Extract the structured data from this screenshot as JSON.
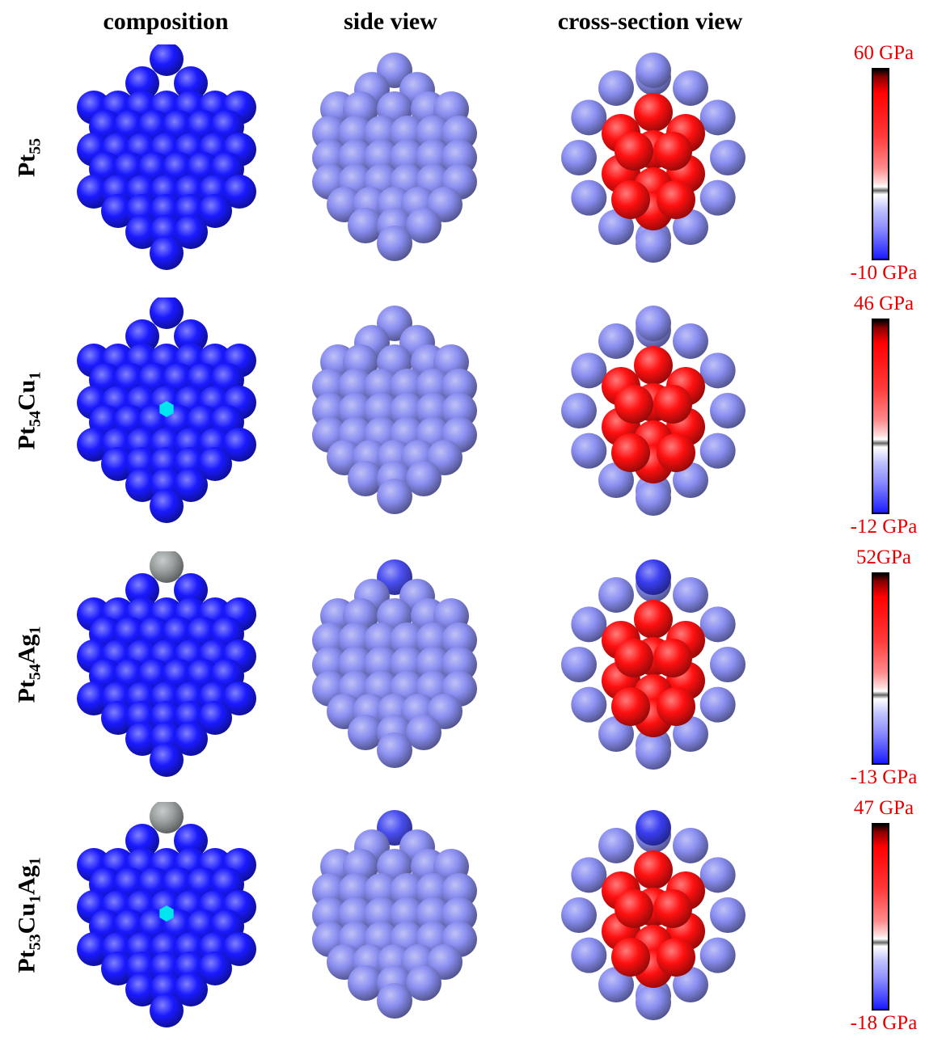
{
  "headers": {
    "composition": "composition",
    "side_view": "side view",
    "cross_section": "cross-section view"
  },
  "rows": [
    {
      "id": "pt55",
      "formula": [
        [
          "Pt",
          "55"
        ]
      ],
      "cu": false,
      "ag": false,
      "cbar_max": "60 GPa",
      "cbar_min": "-10 GPa"
    },
    {
      "id": "pt54cu1",
      "formula": [
        [
          "Pt",
          "54"
        ],
        [
          "Cu",
          "1"
        ]
      ],
      "cu": true,
      "ag": false,
      "cbar_max": "46 GPa",
      "cbar_min": "-12 GPa"
    },
    {
      "id": "pt54ag1",
      "formula": [
        [
          "Pt",
          "54"
        ],
        [
          "Ag",
          "1"
        ]
      ],
      "cu": false,
      "ag": true,
      "cbar_max": "52GPa",
      "cbar_min": "-13 GPa"
    },
    {
      "id": "pt53cu1ag1",
      "formula": [
        [
          "Pt",
          "53"
        ],
        [
          "Cu",
          "1"
        ],
        [
          "Ag",
          "1"
        ]
      ],
      "cu": true,
      "ag": true,
      "cbar_max": "47 GPa",
      "cbar_min": "-18 GPa"
    }
  ],
  "colors": {
    "pt_atom": "#1a1aff",
    "cu_atom": "#00e5ee",
    "ag_atom": "#9aa0a0",
    "surface_atom": "#8a8ef0",
    "core_atom": "#ff1010",
    "label_red": "#e60000"
  }
}
